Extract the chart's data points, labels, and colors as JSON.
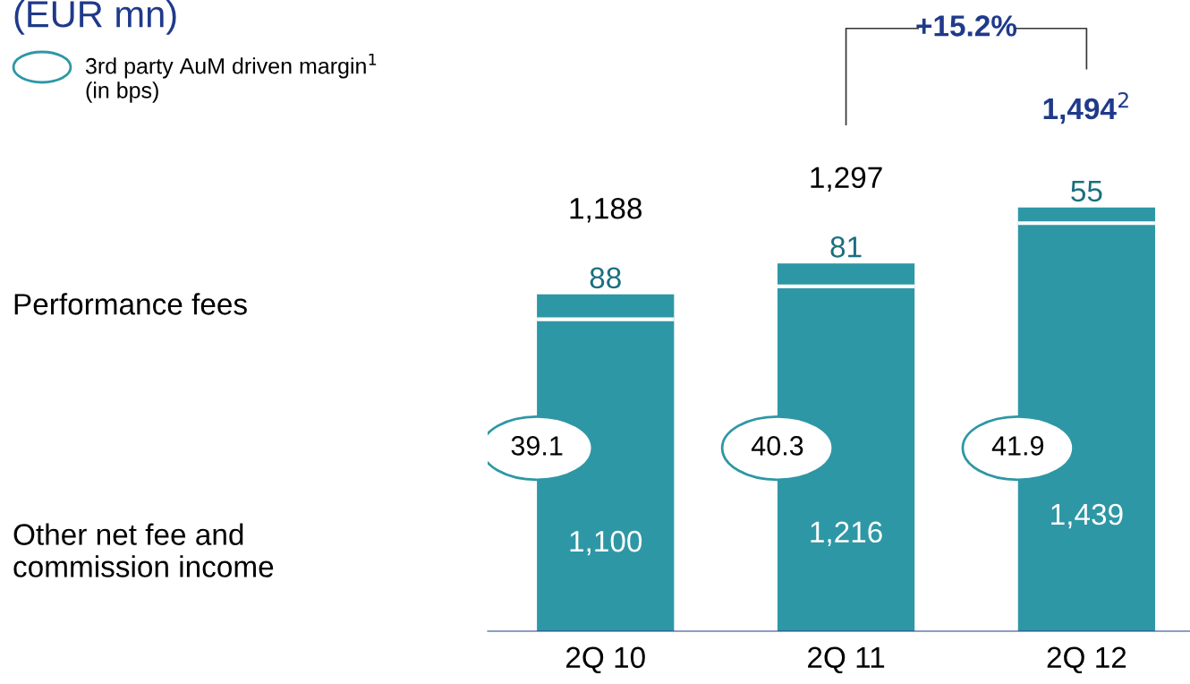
{
  "chart_data": {
    "type": "bar",
    "stacked": true,
    "title": "(EUR mn)",
    "categories": [
      "2Q 10",
      "2Q 11",
      "2Q 12"
    ],
    "series": [
      {
        "color": "#2e97a5",
        "values": [
          1100,
          1216,
          1439
        ],
        "value_labels": [
          "1,100",
          "1,216",
          "1,439"
        ]
      },
      {
        "color": "#2e97a5",
        "values": [
          88,
          81,
          55
        ],
        "value_labels": [
          "88",
          "81",
          "55"
        ]
      }
    ],
    "totals": [
      "1,188",
      "1,297",
      "1,494$^{2}$"
    ],
    "annotations": [
      "3rd party AuM driven margin$^{1}$\n(in bps)",
      "39.1",
      "40.3",
      "41.9",
      "+15.2%",
      "Performance fees",
      "Other net fee and\ncommission income"
    ],
    "legend": false,
    "grid": false
  }
}
